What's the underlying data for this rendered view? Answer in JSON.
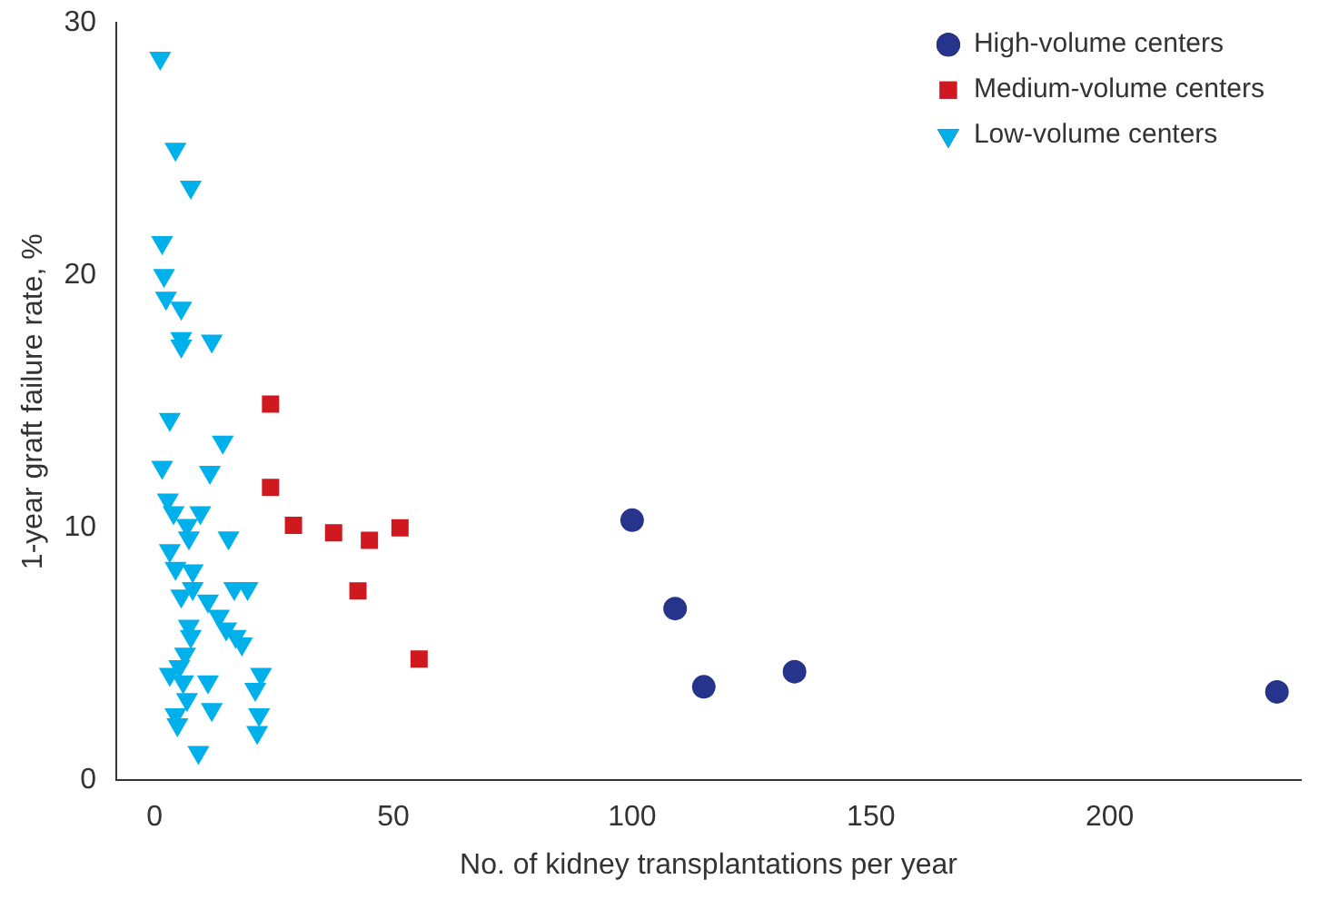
{
  "chart_data": {
    "type": "scatter",
    "xlabel": "No. of kidney transplantations per year",
    "ylabel": "1-year graft failure rate, %",
    "xlim": [
      -8,
      240
    ],
    "xticks": [
      0,
      50,
      100,
      150,
      200
    ],
    "ylim": [
      0,
      30
    ],
    "yticks": [
      0,
      10,
      20,
      30
    ],
    "grid": false,
    "legend": "top right",
    "series": [
      {
        "name": "High-volume centers",
        "color": "#27348b",
        "marker": "circle",
        "x": [
          100,
          109,
          115,
          134,
          235
        ],
        "values": [
          10.3,
          6.8,
          3.7,
          4.3,
          3.5
        ]
      },
      {
        "name": "Medium-volume centers",
        "color": "#d0191f",
        "marker": "square",
        "x": [
          24.3,
          24.3,
          29.1,
          37.5,
          45,
          51.4,
          42.6,
          55.4
        ],
        "values": [
          14.9,
          11.6,
          10.1,
          9.8,
          9.5,
          10.0,
          7.5,
          4.8
        ]
      },
      {
        "name": "Low-volume centers",
        "color": "#00b0eb",
        "marker": "triangle",
        "x": [
          1.2,
          4.4,
          7.6,
          1.6,
          2.0,
          2.4,
          5.6,
          5.6,
          5.6,
          12,
          3.2,
          14.3,
          1.6,
          11.6,
          2.8,
          4.0,
          9.6,
          6.8,
          15.5,
          7.2,
          3.2,
          4.4,
          8.0,
          16.7,
          19.5,
          5.6,
          8.0,
          11.2,
          13.5,
          15,
          17,
          18.3,
          7.2,
          7.6,
          6.4,
          5.2,
          3.2,
          6.0,
          11.2,
          22.3,
          6.8,
          21.1,
          4.4,
          4.8,
          12,
          21.9,
          21.5,
          9.2
        ],
        "values": [
          28.6,
          25.0,
          23.5,
          21.3,
          20.0,
          19.1,
          18.7,
          17.5,
          17.2,
          17.4,
          14.3,
          13.4,
          12.4,
          12.2,
          11.1,
          10.6,
          10.6,
          10.1,
          9.6,
          9.6,
          9.1,
          8.4,
          8.3,
          7.6,
          7.6,
          7.3,
          7.6,
          7.1,
          6.5,
          6.0,
          5.7,
          5.4,
          6.1,
          5.7,
          5.0,
          4.5,
          4.2,
          3.9,
          3.9,
          4.2,
          3.2,
          3.6,
          2.6,
          2.2,
          2.8,
          2.6,
          1.9,
          1.1
        ]
      }
    ]
  }
}
